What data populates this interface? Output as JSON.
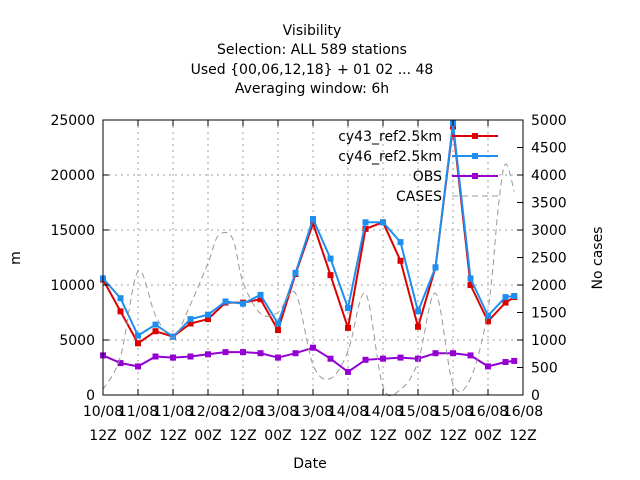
{
  "chart_data": {
    "type": "line",
    "title_lines": [
      "Visibility",
      "Selection: ALL    589 stations",
      "Used {00,06,12,18} + 01 02 ... 48",
      "Averaging window:  6h"
    ],
    "xlabel": "Date",
    "ylabel": "m",
    "y2label": "No cases",
    "x_range": [
      0,
      12
    ],
    "x_ticks": [
      {
        "pos": 0,
        "line1": "10/08",
        "line2": "12Z"
      },
      {
        "pos": 1,
        "line1": "11/08",
        "line2": "00Z"
      },
      {
        "pos": 2,
        "line1": "11/08",
        "line2": "12Z"
      },
      {
        "pos": 3,
        "line1": "12/08",
        "line2": "00Z"
      },
      {
        "pos": 4,
        "line1": "12/08",
        "line2": "12Z"
      },
      {
        "pos": 5,
        "line1": "13/08",
        "line2": "00Z"
      },
      {
        "pos": 6,
        "line1": "13/08",
        "line2": "12Z"
      },
      {
        "pos": 7,
        "line1": "14/08",
        "line2": "00Z"
      },
      {
        "pos": 8,
        "line1": "14/08",
        "line2": "12Z"
      },
      {
        "pos": 9,
        "line1": "15/08",
        "line2": "00Z"
      },
      {
        "pos": 10,
        "line1": "15/08",
        "line2": "12Z"
      },
      {
        "pos": 11,
        "line1": "16/08",
        "line2": "00Z"
      },
      {
        "pos": 12,
        "line1": "16/08",
        "line2": "12Z"
      }
    ],
    "ylim": [
      0,
      25000
    ],
    "y_ticks": [
      0,
      5000,
      10000,
      15000,
      20000,
      25000
    ],
    "y2lim": [
      0,
      5000
    ],
    "y2_ticks": [
      0,
      500,
      1000,
      1500,
      2000,
      2500,
      3000,
      3500,
      4000,
      4500,
      5000
    ],
    "grid": true,
    "legend_position": "top-right",
    "x": [
      0.0,
      0.5,
      1.0,
      1.5,
      2.0,
      2.5,
      3.0,
      3.5,
      4.0,
      4.5,
      5.0,
      5.5,
      6.0,
      6.5,
      7.0,
      7.5,
      8.0,
      8.5,
      9.0,
      9.5,
      10.0,
      10.5,
      11.0,
      11.5,
      11.75
    ],
    "series": [
      {
        "name": "cy43_ref2.5km",
        "color": "#dd0000",
        "axis": "y1",
        "marker": "square",
        "values": [
          10500,
          7600,
          4700,
          5800,
          5300,
          6500,
          6900,
          8400,
          8400,
          8700,
          5900,
          11000,
          15600,
          10900,
          6100,
          15100,
          15700,
          12200,
          6200,
          11600,
          24400,
          10000,
          6700,
          8400,
          8900
        ]
      },
      {
        "name": "cy46_ref2.5km",
        "color": "#1e8ff0",
        "axis": "y1",
        "marker": "square",
        "values": [
          10600,
          8800,
          5400,
          6400,
          5300,
          6900,
          7300,
          8500,
          8300,
          9100,
          6500,
          11100,
          16000,
          12400,
          7900,
          15700,
          15700,
          13900,
          7600,
          11600,
          24700,
          10600,
          7200,
          8900,
          9000
        ]
      },
      {
        "name": "OBS",
        "color": "#9400d3",
        "axis": "y1",
        "marker": "square",
        "values": [
          3600,
          2900,
          2600,
          3500,
          3400,
          3500,
          3700,
          3900,
          3900,
          3800,
          3400,
          3800,
          4300,
          3300,
          2100,
          3200,
          3300,
          3400,
          3300,
          3800,
          3800,
          3600,
          2600,
          3000,
          3100
        ]
      },
      {
        "name": "CASES",
        "color": "#999999",
        "axis": "y2",
        "marker": "none",
        "dashed": true,
        "x": [
          0.0,
          0.5,
          1.0,
          1.5,
          2.0,
          2.5,
          3.0,
          3.3,
          3.7,
          4.0,
          4.5,
          5.0,
          5.5,
          6.0,
          6.5,
          7.0,
          7.5,
          8.0,
          8.5,
          9.0,
          9.5,
          10.0,
          10.5,
          11.0,
          11.3,
          11.5,
          11.75
        ],
        "values": [
          100,
          700,
          2250,
          1450,
          1050,
          1650,
          2400,
          2900,
          2850,
          2050,
          1480,
          1500,
          1850,
          550,
          300,
          800,
          1850,
          150,
          100,
          600,
          1850,
          200,
          300,
          1550,
          3450,
          4200,
          3700
        ]
      }
    ]
  }
}
